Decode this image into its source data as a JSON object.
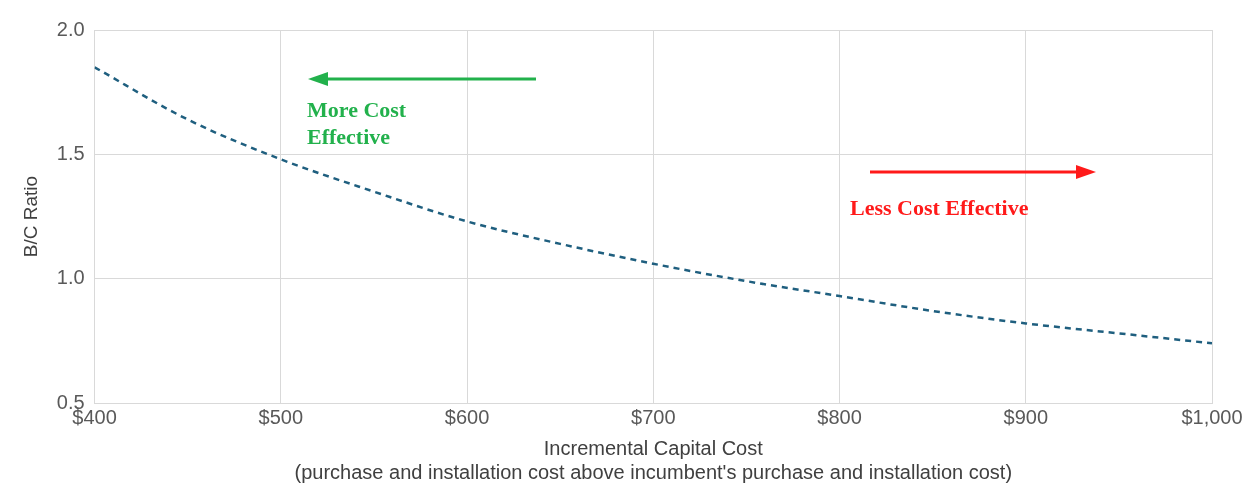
{
  "chart_data": {
    "type": "line",
    "xlabel": "Incremental Capital Cost\n(purchase and installation cost above incumbent's purchase and installation cost)",
    "ylabel": "B/C Ratio",
    "x": [
      400,
      450,
      500,
      550,
      600,
      650,
      700,
      750,
      800,
      850,
      900,
      950,
      1000
    ],
    "series": [
      {
        "color": "#1f5f7f",
        "values": [
          1.85,
          1.64,
          1.48,
          1.35,
          1.23,
          1.14,
          1.06,
          0.99,
          0.93,
          0.87,
          0.82,
          0.78,
          0.74
        ]
      }
    ],
    "xlim": [
      400,
      1000
    ],
    "xticks": [
      {
        "value": 400,
        "label": "$400"
      },
      {
        "value": 500,
        "label": "$500"
      },
      {
        "value": 600,
        "label": "$600"
      },
      {
        "value": 700,
        "label": "$700"
      },
      {
        "value": 800,
        "label": "$800"
      },
      {
        "value": 900,
        "label": "$900"
      },
      {
        "value": 1000,
        "label": "$1,000"
      }
    ],
    "ylim": [
      0.5,
      2.0
    ],
    "yticks": [
      {
        "value": 0.5,
        "label": "0.5"
      },
      {
        "value": 1.0,
        "label": "1.0"
      },
      {
        "value": 1.5,
        "label": "1.5"
      },
      {
        "value": 2.0,
        "label": "2.0"
      }
    ],
    "annotations": [
      "More Cost\nEffective",
      "Less Cost Effective"
    ],
    "grid": true,
    "legend": false,
    "marker": "none",
    "line_style": "dashed"
  }
}
